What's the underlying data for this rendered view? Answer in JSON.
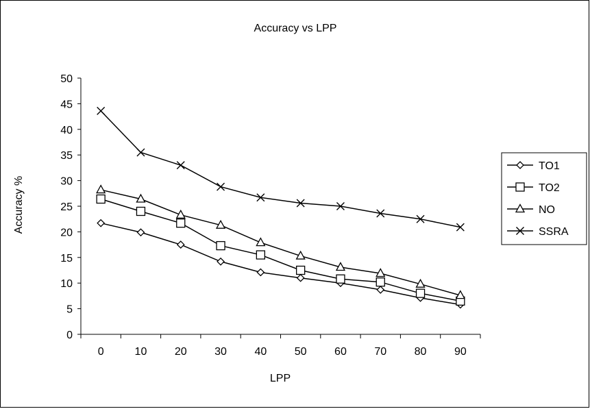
{
  "chart_data": {
    "type": "line",
    "title": "Accuracy vs LPP",
    "xlabel": "LPP",
    "ylabel": "Accuracy %",
    "categories": [
      "0",
      "10",
      "20",
      "30",
      "40",
      "50",
      "60",
      "70",
      "80",
      "90"
    ],
    "ylim": [
      0,
      50
    ],
    "yticks": [
      "0",
      "5",
      "10",
      "15",
      "20",
      "25",
      "30",
      "35",
      "40",
      "45",
      "50"
    ],
    "grid": false,
    "legend_position": "right",
    "series": [
      {
        "name": "TO1",
        "marker": "diamond",
        "values": [
          21.7,
          19.9,
          17.5,
          14.2,
          12.1,
          11.0,
          10.0,
          8.7,
          7.1,
          5.8
        ]
      },
      {
        "name": "TO2",
        "marker": "square",
        "values": [
          26.4,
          24.0,
          21.7,
          17.3,
          15.5,
          12.5,
          10.8,
          10.2,
          8.0,
          6.5
        ]
      },
      {
        "name": "NO",
        "marker": "triangle",
        "values": [
          28.2,
          26.4,
          23.3,
          21.3,
          17.9,
          15.3,
          13.1,
          11.9,
          9.8,
          7.6
        ]
      },
      {
        "name": "SSRA",
        "marker": "cross",
        "values": [
          43.6,
          35.5,
          33.0,
          28.8,
          26.7,
          25.6,
          25.0,
          23.6,
          22.5,
          20.9
        ]
      }
    ]
  }
}
